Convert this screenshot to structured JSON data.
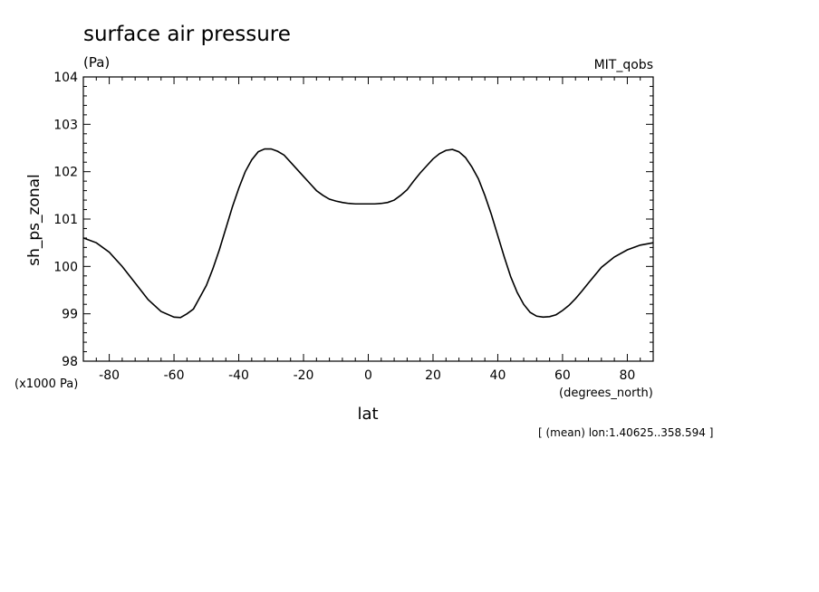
{
  "chart_data": {
    "type": "line",
    "title": "surface air pressure",
    "units": "(Pa)",
    "dataset": "MIT_qobs",
    "ylabel": "sh_ps_zonal",
    "yscale_note": "(x1000 Pa)",
    "xlabel": "lat",
    "xunits": "(degrees_north)",
    "footnote": "[ (mean) lon:1.40625..358.594 ]",
    "xlim": [
      -88,
      88
    ],
    "ylim": [
      98,
      104
    ],
    "x_ticks": [
      -80,
      -60,
      -40,
      -20,
      0,
      20,
      40,
      60,
      80
    ],
    "x_tick_labels": [
      "-80",
      "-60",
      "-40",
      "-20",
      "0",
      "20",
      "40",
      "60",
      "80"
    ],
    "y_ticks": [
      98,
      99,
      100,
      101,
      102,
      103,
      104
    ],
    "y_tick_labels": [
      "98",
      "99",
      "100",
      "101",
      "102",
      "103",
      "104"
    ],
    "grid": false,
    "series": [
      {
        "x": [
          -88,
          -84,
          -80,
          -76,
          -72,
          -68,
          -64,
          -60,
          -58,
          -56,
          -54,
          -52,
          -50,
          -48,
          -46,
          -44,
          -42,
          -40,
          -38,
          -36,
          -34,
          -32,
          -30,
          -28,
          -26,
          -24,
          -22,
          -20,
          -18,
          -16,
          -14,
          -12,
          -10,
          -8,
          -6,
          -4,
          -2,
          0,
          2,
          4,
          6,
          8,
          10,
          12,
          14,
          16,
          18,
          20,
          22,
          24,
          26,
          28,
          30,
          32,
          34,
          36,
          38,
          40,
          42,
          44,
          46,
          48,
          50,
          52,
          54,
          56,
          58,
          60,
          62,
          64,
          66,
          68,
          72,
          76,
          80,
          84,
          88
        ],
        "y": [
          100.6,
          100.5,
          100.3,
          100.0,
          99.65,
          99.3,
          99.05,
          98.93,
          98.92,
          99.0,
          99.1,
          99.35,
          99.6,
          99.95,
          100.35,
          100.8,
          101.25,
          101.65,
          102.0,
          102.25,
          102.42,
          102.48,
          102.48,
          102.43,
          102.35,
          102.2,
          102.05,
          101.9,
          101.75,
          101.6,
          101.5,
          101.42,
          101.38,
          101.35,
          101.33,
          101.32,
          101.32,
          101.32,
          101.32,
          101.33,
          101.35,
          101.4,
          101.5,
          101.62,
          101.8,
          101.97,
          102.12,
          102.27,
          102.38,
          102.45,
          102.47,
          102.42,
          102.3,
          102.1,
          101.85,
          101.5,
          101.1,
          100.65,
          100.2,
          99.78,
          99.45,
          99.2,
          99.03,
          98.95,
          98.93,
          98.94,
          98.98,
          99.07,
          99.18,
          99.32,
          99.48,
          99.65,
          99.98,
          100.2,
          100.35,
          100.45,
          100.5
        ]
      }
    ]
  }
}
